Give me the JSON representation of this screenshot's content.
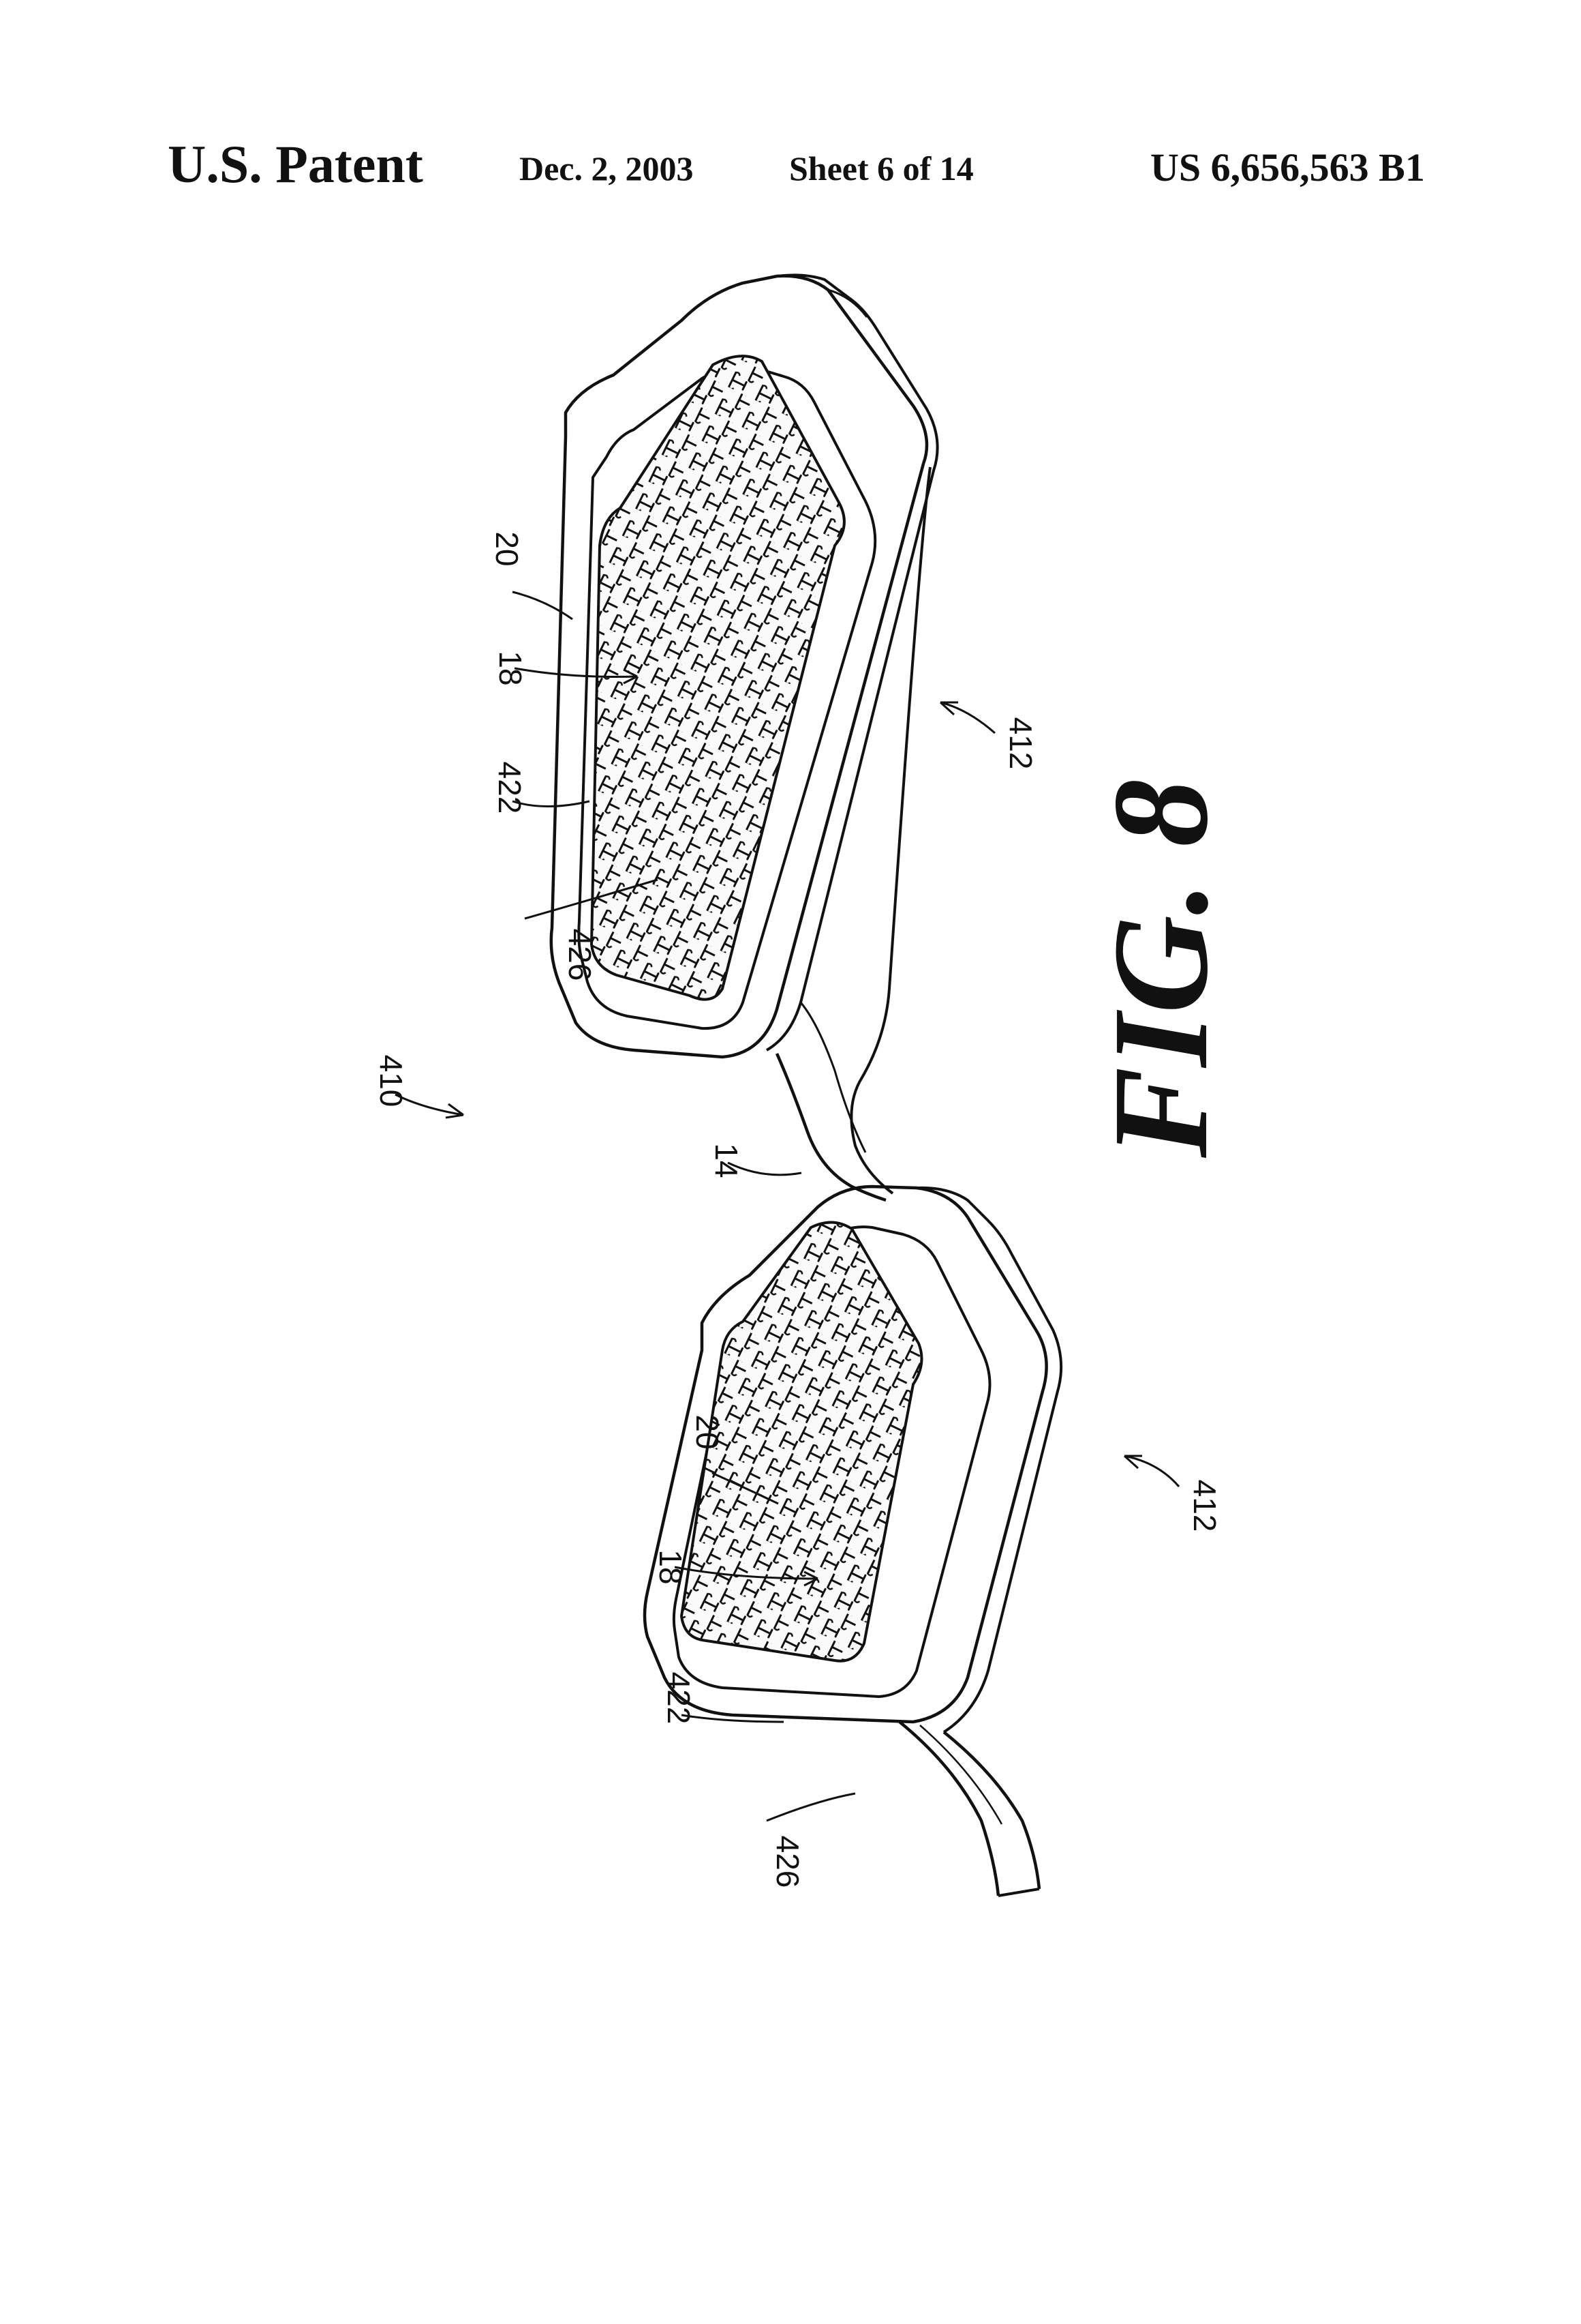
{
  "header": {
    "patent_label": "U.S. Patent",
    "date": "Dec. 2, 2003",
    "sheet": "Sheet 6 of 14",
    "patent_number": "US 6,656,563 B1"
  },
  "figure": {
    "caption": "FIG. 8",
    "labels": {
      "assembly": "410",
      "bridge": "14",
      "upper_rim": "412",
      "upper_frame": "422",
      "upper_pad": "426",
      "upper_grid": "18",
      "upper_protrusion": "20",
      "lower_rim": "412",
      "lower_frame": "422",
      "lower_pad": "426",
      "lower_grid": "18",
      "lower_protrusion": "20"
    }
  },
  "colors": {
    "ink": "#111111",
    "paper": "#ffffff"
  }
}
